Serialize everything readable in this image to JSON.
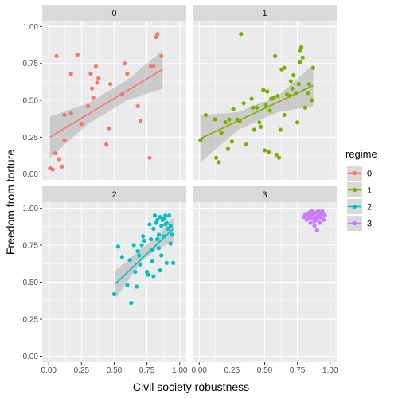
{
  "chart_data": {
    "type": "scatter",
    "xlabel": "Civil society robustness",
    "ylabel": "Freedom from torture",
    "xlim": [
      -0.05,
      1.05
    ],
    "ylim": [
      -0.04,
      1.04
    ],
    "xticks": [
      0,
      0.25,
      0.5,
      0.75,
      1
    ],
    "xtick_labels": [
      "0.00",
      "0.25",
      "0.50",
      "0.75",
      "1.00"
    ],
    "yticks": [
      0,
      0.25,
      0.5,
      0.75,
      1
    ],
    "ytick_labels": [
      "0.00",
      "0.25",
      "0.50",
      "0.75",
      "1.00"
    ],
    "grid": true,
    "legend": {
      "title": "regime",
      "placement": "right",
      "entries": [
        "0",
        "1",
        "2",
        "3"
      ]
    },
    "colors": [
      "#F8766D",
      "#7CAE00",
      "#00BFC4",
      "#C77CFF"
    ],
    "panels": [
      {
        "strip": "0",
        "fit": {
          "x": [
            0.01,
            0.87
          ],
          "y": [
            0.25,
            0.71
          ]
        },
        "band": {
          "x": [
            0.01,
            0.3,
            0.6,
            0.87
          ],
          "lower": [
            0.11,
            0.34,
            0.5,
            0.58
          ],
          "upper": [
            0.39,
            0.48,
            0.64,
            0.84
          ]
        },
        "points": [
          [
            0.01,
            0.04
          ],
          [
            0.03,
            0.03
          ],
          [
            0.05,
            0.14
          ],
          [
            0.08,
            0.1
          ],
          [
            0.1,
            0.05
          ],
          [
            0.06,
            0.8
          ],
          [
            0.12,
            0.23
          ],
          [
            0.12,
            0.4
          ],
          [
            0.17,
            0.41
          ],
          [
            0.17,
            0.68
          ],
          [
            0.22,
            0.81
          ],
          [
            0.25,
            0.34
          ],
          [
            0.3,
            0.46
          ],
          [
            0.32,
            0.68
          ],
          [
            0.33,
            0.58
          ],
          [
            0.34,
            0.52
          ],
          [
            0.36,
            0.73
          ],
          [
            0.37,
            0.62
          ],
          [
            0.38,
            0.65
          ],
          [
            0.44,
            0.2
          ],
          [
            0.46,
            0.31
          ],
          [
            0.47,
            0.61
          ],
          [
            0.56,
            0.54
          ],
          [
            0.58,
            0.75
          ],
          [
            0.6,
            0.68
          ],
          [
            0.68,
            0.46
          ],
          [
            0.7,
            0.36
          ],
          [
            0.77,
            0.11
          ],
          [
            0.78,
            0.73
          ],
          [
            0.8,
            0.73
          ],
          [
            0.82,
            0.93
          ],
          [
            0.83,
            0.95
          ],
          [
            0.86,
            0.8
          ]
        ]
      },
      {
        "strip": "1",
        "fit": {
          "x": [
            0.01,
            0.87
          ],
          "y": [
            0.24,
            0.6
          ]
        },
        "band": {
          "x": [
            0.01,
            0.3,
            0.6,
            0.87
          ],
          "lower": [
            0.08,
            0.3,
            0.42,
            0.46
          ],
          "upper": [
            0.4,
            0.42,
            0.53,
            0.74
          ]
        },
        "points": [
          [
            0.01,
            0.23
          ],
          [
            0.05,
            0.4
          ],
          [
            0.12,
            0.37
          ],
          [
            0.13,
            0.11
          ],
          [
            0.15,
            0.08
          ],
          [
            0.17,
            0.28
          ],
          [
            0.2,
            0.35
          ],
          [
            0.22,
            0.17
          ],
          [
            0.23,
            0.37
          ],
          [
            0.25,
            0.22
          ],
          [
            0.26,
            0.44
          ],
          [
            0.29,
            0.37
          ],
          [
            0.31,
            0.36
          ],
          [
            0.32,
            0.95
          ],
          [
            0.34,
            0.48
          ],
          [
            0.36,
            0.2
          ],
          [
            0.4,
            0.51
          ],
          [
            0.41,
            0.45
          ],
          [
            0.42,
            0.3
          ],
          [
            0.44,
            0.45
          ],
          [
            0.46,
            0.35
          ],
          [
            0.47,
            0.32
          ],
          [
            0.49,
            0.57
          ],
          [
            0.5,
            0.16
          ],
          [
            0.51,
            0.47
          ],
          [
            0.52,
            0.56
          ],
          [
            0.53,
            0.15
          ],
          [
            0.54,
            0.43
          ],
          [
            0.55,
            0.51
          ],
          [
            0.57,
            0.52
          ],
          [
            0.58,
            0.8
          ],
          [
            0.59,
            0.13
          ],
          [
            0.6,
            0.53
          ],
          [
            0.61,
            0.11
          ],
          [
            0.62,
            0.3
          ],
          [
            0.63,
            0.71
          ],
          [
            0.65,
            0.72
          ],
          [
            0.65,
            0.4
          ],
          [
            0.67,
            0.54
          ],
          [
            0.69,
            0.53
          ],
          [
            0.7,
            0.63
          ],
          [
            0.71,
            0.58
          ],
          [
            0.72,
            0.67
          ],
          [
            0.74,
            0.55
          ],
          [
            0.75,
            0.35
          ],
          [
            0.76,
            0.61
          ],
          [
            0.77,
            0.76
          ],
          [
            0.77,
            0.84
          ],
          [
            0.78,
            0.86
          ],
          [
            0.79,
            0.79
          ],
          [
            0.81,
            0.45
          ],
          [
            0.83,
            0.55
          ],
          [
            0.84,
            0.61
          ],
          [
            0.86,
            0.5
          ],
          [
            0.87,
            0.72
          ]
        ]
      },
      {
        "strip": "2",
        "fit": {
          "x": [
            0.51,
            0.95
          ],
          "y": [
            0.49,
            0.86
          ]
        },
        "band": {
          "x": [
            0.51,
            0.7,
            0.82,
            0.95
          ],
          "lower": [
            0.39,
            0.63,
            0.72,
            0.77
          ],
          "upper": [
            0.58,
            0.72,
            0.8,
            0.94
          ]
        },
        "points": [
          [
            0.5,
            0.42
          ],
          [
            0.53,
            0.74
          ],
          [
            0.56,
            0.67
          ],
          [
            0.6,
            0.48
          ],
          [
            0.62,
            0.65
          ],
          [
            0.63,
            0.36
          ],
          [
            0.65,
            0.75
          ],
          [
            0.66,
            0.57
          ],
          [
            0.67,
            0.47
          ],
          [
            0.68,
            0.71
          ],
          [
            0.69,
            0.68
          ],
          [
            0.7,
            0.62
          ],
          [
            0.71,
            0.75
          ],
          [
            0.72,
            0.81
          ],
          [
            0.73,
            0.78
          ],
          [
            0.75,
            0.57
          ],
          [
            0.76,
            0.55
          ],
          [
            0.77,
            0.89
          ],
          [
            0.78,
            0.79
          ],
          [
            0.79,
            0.72
          ],
          [
            0.79,
            0.64
          ],
          [
            0.8,
            0.54
          ],
          [
            0.8,
            0.86
          ],
          [
            0.81,
            0.95
          ],
          [
            0.82,
            0.9
          ],
          [
            0.83,
            0.79
          ],
          [
            0.84,
            0.82
          ],
          [
            0.84,
            0.73
          ],
          [
            0.85,
            0.58
          ],
          [
            0.86,
            0.88
          ],
          [
            0.86,
            0.68
          ],
          [
            0.87,
            0.92
          ],
          [
            0.88,
            0.93
          ],
          [
            0.88,
            0.81
          ],
          [
            0.89,
            0.95
          ],
          [
            0.89,
            0.89
          ],
          [
            0.9,
            0.9
          ],
          [
            0.9,
            0.63
          ],
          [
            0.91,
            0.86
          ],
          [
            0.92,
            0.95
          ],
          [
            0.93,
            0.88
          ],
          [
            0.93,
            0.76
          ],
          [
            0.94,
            0.82
          ],
          [
            0.95,
            0.63
          ],
          [
            0.83,
            0.92
          ],
          [
            0.85,
            0.94
          ]
        ]
      },
      {
        "strip": "3",
        "fit": null,
        "band": null,
        "points": [
          [
            0.8,
            0.94
          ],
          [
            0.81,
            0.96
          ],
          [
            0.82,
            0.92
          ],
          [
            0.83,
            0.95
          ],
          [
            0.84,
            0.97
          ],
          [
            0.84,
            0.93
          ],
          [
            0.85,
            0.9
          ],
          [
            0.85,
            0.95
          ],
          [
            0.86,
            0.98
          ],
          [
            0.87,
            0.93
          ],
          [
            0.87,
            0.96
          ],
          [
            0.88,
            0.88
          ],
          [
            0.88,
            0.91
          ],
          [
            0.89,
            0.94
          ],
          [
            0.89,
            0.97
          ],
          [
            0.9,
            0.85
          ],
          [
            0.9,
            0.92
          ],
          [
            0.91,
            0.95
          ],
          [
            0.91,
            0.98
          ],
          [
            0.92,
            0.94
          ],
          [
            0.92,
            0.9
          ],
          [
            0.93,
            0.97
          ],
          [
            0.93,
            0.96
          ],
          [
            0.94,
            0.93
          ],
          [
            0.94,
            0.98
          ],
          [
            0.95,
            0.96
          ],
          [
            0.95,
            0.92
          ],
          [
            0.96,
            0.95
          ]
        ]
      }
    ]
  }
}
